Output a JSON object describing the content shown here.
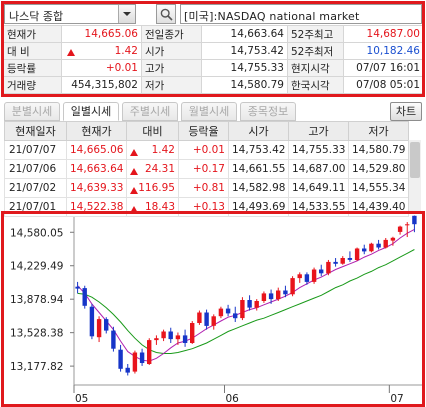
{
  "search": {
    "market_select": "나스닥 종합",
    "symbol_text": "[미국]:NASDAQ national market"
  },
  "quote": {
    "rows": [
      [
        {
          "label": "현재가"
        },
        {
          "value": "14,665.06",
          "color": "red"
        },
        {
          "label": "전일종가"
        },
        {
          "value": "14,663.64"
        },
        {
          "label": "52주최고"
        },
        {
          "value": "14,687.00",
          "color": "red"
        }
      ],
      [
        {
          "label": "대  비"
        },
        {
          "value": "1.42",
          "color": "red",
          "arrow": "up"
        },
        {
          "label": "시가"
        },
        {
          "value": "14,753.42"
        },
        {
          "label": "52주최저"
        },
        {
          "value": "10,182.46",
          "color": "blue"
        }
      ],
      [
        {
          "label": "등락률"
        },
        {
          "value": "+0.01",
          "color": "red"
        },
        {
          "label": "고가"
        },
        {
          "value": "14,755.33"
        },
        {
          "label": "현지시각"
        },
        {
          "value": "07/07 16:01"
        }
      ],
      [
        {
          "label": "거래량"
        },
        {
          "value": "454,315,802"
        },
        {
          "label": "저가"
        },
        {
          "value": "14,580.79"
        },
        {
          "label": "한국시각"
        },
        {
          "value": "07/08 05:01"
        }
      ]
    ]
  },
  "tabs": {
    "items": [
      "분별시세",
      "일별시세",
      "주별시세",
      "월별시세",
      "종목정보"
    ],
    "active": 1,
    "chart_button": "차트"
  },
  "daily": {
    "headers": [
      "현재일자",
      "현재가",
      "대비",
      "등락율",
      "시가",
      "고가",
      "저가"
    ],
    "rows": [
      {
        "date": "21/07/07",
        "close": "14,665.06",
        "change": "1.42",
        "rate": "+0.01",
        "open": "14,753.42",
        "high": "14,755.33",
        "low": "14,580.79"
      },
      {
        "date": "21/07/06",
        "close": "14,663.64",
        "change": "24.31",
        "rate": "+0.17",
        "open": "14,661.55",
        "high": "14,687.00",
        "low": "14,529.80"
      },
      {
        "date": "21/07/02",
        "close": "14,639.33",
        "change": "116.95",
        "rate": "+0.81",
        "open": "14,582.98",
        "high": "14,649.11",
        "low": "14,555.34"
      },
      {
        "date": "21/07/01",
        "close": "14,522.38",
        "change": "18.43",
        "rate": "+0.13",
        "open": "14,493.69",
        "high": "14,533.55",
        "low": "14,439.40"
      }
    ]
  },
  "chart_data": {
    "type": "candlestick",
    "y_ticks": [
      "14,580.05",
      "14,229.49",
      "13,878.94",
      "13,528.38",
      "13,177.82"
    ],
    "y_tick_values": [
      14580.05,
      14229.49,
      13878.94,
      13528.38,
      13177.82
    ],
    "x_ticks": [
      "05",
      "06",
      "07"
    ],
    "ylim": [
      12980,
      14740
    ],
    "colors": {
      "up": "#e8141c",
      "down": "#1635c8",
      "ma_fast": "#b020b0",
      "ma_slow": "#1a9a1a"
    },
    "ohlc": [
      [
        14010,
        14060,
        13940,
        13990
      ],
      [
        13995,
        14020,
        13780,
        13810
      ],
      [
        13800,
        13830,
        13460,
        13490
      ],
      [
        13480,
        13700,
        13430,
        13670
      ],
      [
        13670,
        13690,
        13520,
        13550
      ],
      [
        13550,
        13590,
        13330,
        13360
      ],
      [
        13350,
        13400,
        13120,
        13150
      ],
      [
        13160,
        13200,
        13080,
        13110
      ],
      [
        13120,
        13340,
        13100,
        13320
      ],
      [
        13320,
        13360,
        13180,
        13210
      ],
      [
        13200,
        13470,
        13190,
        13450
      ],
      [
        13450,
        13500,
        13400,
        13470
      ],
      [
        13470,
        13560,
        13440,
        13540
      ],
      [
        13540,
        13580,
        13420,
        13460
      ],
      [
        13460,
        13530,
        13400,
        13500
      ],
      [
        13500,
        13560,
        13380,
        13420
      ],
      [
        13420,
        13650,
        13410,
        13630
      ],
      [
        13630,
        13760,
        13610,
        13740
      ],
      [
        13740,
        13770,
        13560,
        13600
      ],
      [
        13600,
        13720,
        13560,
        13700
      ],
      [
        13700,
        13800,
        13680,
        13780
      ],
      [
        13780,
        13820,
        13700,
        13730
      ],
      [
        13730,
        13800,
        13640,
        13680
      ],
      [
        13680,
        13900,
        13660,
        13870
      ],
      [
        13870,
        13920,
        13760,
        13790
      ],
      [
        13790,
        13880,
        13760,
        13860
      ],
      [
        13860,
        13960,
        13840,
        13940
      ],
      [
        13940,
        13980,
        13830,
        13880
      ],
      [
        13880,
        14000,
        13860,
        13970
      ],
      [
        13970,
        14020,
        13900,
        13930
      ],
      [
        13930,
        14120,
        13910,
        14100
      ],
      [
        14100,
        14160,
        14050,
        14140
      ],
      [
        14140,
        14160,
        14030,
        14060
      ],
      [
        14060,
        14210,
        14040,
        14190
      ],
      [
        14190,
        14240,
        14120,
        14150
      ],
      [
        14150,
        14290,
        14130,
        14270
      ],
      [
        14270,
        14310,
        14220,
        14250
      ],
      [
        14250,
        14330,
        14240,
        14310
      ],
      [
        14310,
        14380,
        14270,
        14290
      ],
      [
        14290,
        14420,
        14280,
        14410
      ],
      [
        14410,
        14450,
        14350,
        14380
      ],
      [
        14380,
        14470,
        14370,
        14460
      ],
      [
        14460,
        14500,
        14400,
        14420
      ],
      [
        14420,
        14520,
        14410,
        14500
      ],
      [
        14493,
        14533,
        14439,
        14522
      ],
      [
        14583,
        14649,
        14555,
        14639
      ],
      [
        14661,
        14687,
        14530,
        14664
      ],
      [
        14753,
        14755,
        14581,
        14665
      ]
    ],
    "ma_fast": [
      14020,
      13940,
      13830,
      13740,
      13650,
      13560,
      13440,
      13330,
      13280,
      13240,
      13230,
      13260,
      13310,
      13370,
      13420,
      13440,
      13470,
      13520,
      13570,
      13610,
      13650,
      13690,
      13710,
      13740,
      13770,
      13790,
      13820,
      13850,
      13880,
      13910,
      13950,
      14000,
      14040,
      14080,
      14110,
      14150,
      14190,
      14220,
      14250,
      14280,
      14320,
      14350,
      14390,
      14420,
      14460,
      14520,
      14570,
      14610
    ],
    "ma_slow": [
      13940,
      13930,
      13900,
      13850,
      13790,
      13720,
      13640,
      13550,
      13470,
      13400,
      13350,
      13320,
      13310,
      13310,
      13320,
      13340,
      13360,
      13390,
      13420,
      13460,
      13500,
      13540,
      13570,
      13600,
      13630,
      13660,
      13680,
      13710,
      13740,
      13770,
      13800,
      13830,
      13860,
      13890,
      13920,
      13960,
      14000,
      14030,
      14070,
      14100,
      14140,
      14170,
      14210,
      14240,
      14280,
      14320,
      14360,
      14400
    ]
  }
}
